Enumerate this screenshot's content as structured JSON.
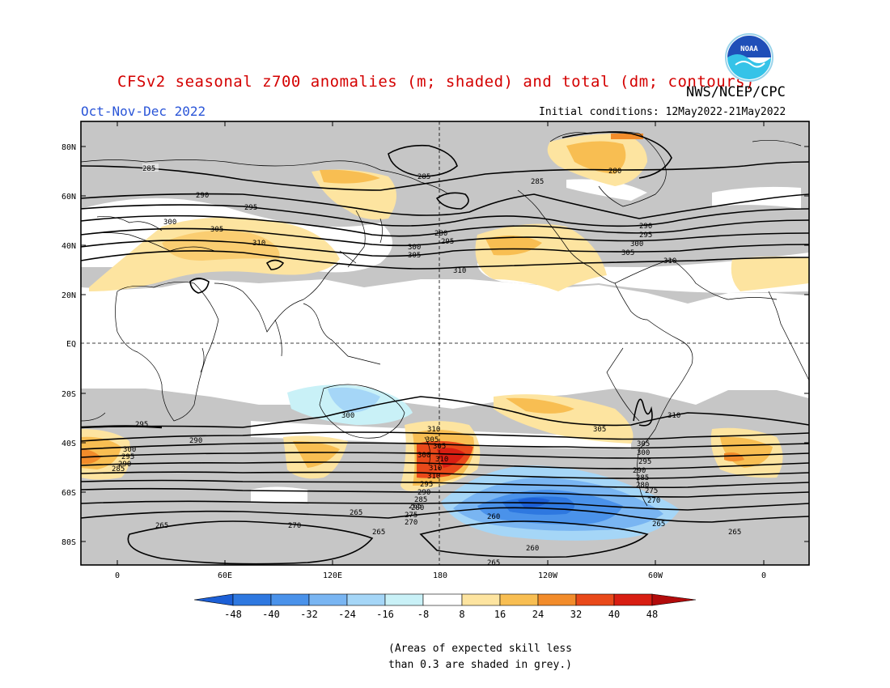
{
  "header": {
    "title": "CFSv2 seasonal z700 anomalies (m; shaded) and total (dm; contours)",
    "organization": "NWS/NCEP/CPC",
    "season": "Oct-Nov-Dec 2022",
    "initial_conditions": "Initial conditions: 12May2022-21May2022",
    "logo_text": "NOAA"
  },
  "map": {
    "lat_labels": [
      "80N",
      "60N",
      "40N",
      "20N",
      "EQ",
      "20S",
      "40S",
      "60S",
      "80S"
    ],
    "lon_labels": [
      "0",
      "60E",
      "120E",
      "180",
      "120W",
      "60W",
      "0"
    ],
    "contour_labels": [
      "285",
      "290",
      "295",
      "300",
      "305",
      "310",
      "285",
      "285",
      "280",
      "290",
      "295",
      "300",
      "305",
      "310",
      "280",
      "295",
      "300",
      "305",
      "310",
      "290",
      "295",
      "300",
      "305",
      "310",
      "300",
      "295",
      "290",
      "285",
      "310",
      "305",
      "310",
      "310",
      "310",
      "305",
      "300",
      "295",
      "290",
      "285",
      "280",
      "275",
      "270",
      "265",
      "260",
      "265",
      "270",
      "265",
      "265",
      "265",
      "305",
      "300",
      "295",
      "290",
      "285",
      "280",
      "275",
      "270",
      "265",
      "260",
      "265"
    ]
  },
  "colorbar": {
    "ticks": [
      "-48",
      "-40",
      "-32",
      "-24",
      "-16",
      "-8",
      "8",
      "16",
      "24",
      "32",
      "40",
      "48"
    ],
    "colors": [
      "#1c5fd6",
      "#2e78e0",
      "#4a92ea",
      "#79b5f2",
      "#a5d6f7",
      "#c9f1f7",
      "#ffffff",
      "#fde4a0",
      "#f8be52",
      "#f28c2b",
      "#e9491a",
      "#d81e12",
      "#b20b0b"
    ]
  },
  "skill_note": "(Areas of expected skill less\nthan 0.3 are shaded in grey.)"
}
